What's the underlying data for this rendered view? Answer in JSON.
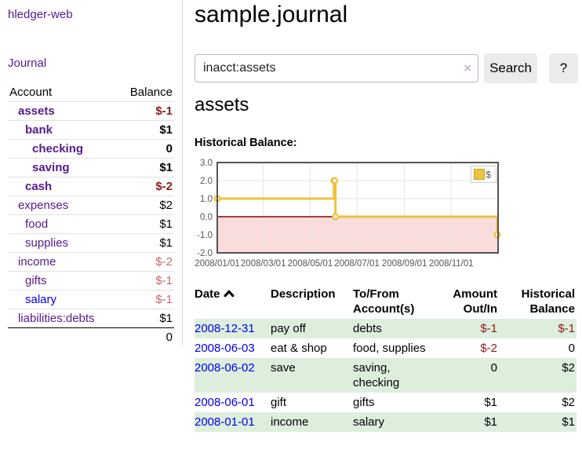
{
  "app": {
    "title": "hledger-web",
    "nav_journal": "Journal"
  },
  "sidebar": {
    "table": {
      "col_account": "Account",
      "col_balance": "Balance",
      "accounts": [
        {
          "name": "assets",
          "indent": 1,
          "bold": true,
          "balance": "$-1",
          "balance_class": "neg-strong",
          "link": "purple"
        },
        {
          "name": "bank",
          "indent": 2,
          "bold": true,
          "balance": "$1",
          "balance_class": "pos-strong",
          "link": "purple"
        },
        {
          "name": "checking",
          "indent": 3,
          "bold": true,
          "balance": "0",
          "balance_class": "pos-strong",
          "link": "purple"
        },
        {
          "name": "saving",
          "indent": 3,
          "bold": true,
          "balance": "$1",
          "balance_class": "pos-strong",
          "link": "purple"
        },
        {
          "name": "cash",
          "indent": 2,
          "bold": true,
          "balance": "$-2",
          "balance_class": "neg-strong",
          "link": "purple"
        },
        {
          "name": "expenses",
          "indent": 1,
          "bold": false,
          "balance": "$2",
          "balance_class": "pos",
          "link": "purple"
        },
        {
          "name": "food",
          "indent": 2,
          "bold": false,
          "balance": "$1",
          "balance_class": "pos",
          "link": "purple"
        },
        {
          "name": "supplies",
          "indent": 2,
          "bold": false,
          "balance": "$1",
          "balance_class": "pos",
          "link": "purple"
        },
        {
          "name": "income",
          "indent": 1,
          "bold": false,
          "balance": "$-2",
          "balance_class": "neg-soft",
          "link": "purple"
        },
        {
          "name": "gifts",
          "indent": 2,
          "bold": false,
          "balance": "$-1",
          "balance_class": "neg-soft",
          "link": "purple"
        },
        {
          "name": "salary",
          "indent": 2,
          "bold": false,
          "balance": "$-1",
          "balance_class": "neg-soft",
          "link": "blue"
        },
        {
          "name": "liabilities:debts",
          "indent": 1,
          "bold": false,
          "balance": "$1",
          "balance_class": "pos",
          "link": "purple"
        }
      ],
      "total": "0"
    }
  },
  "header": {
    "title": "sample.journal"
  },
  "search": {
    "query": "inacct:assets",
    "clear_icon": "×",
    "button_label": "Search",
    "help_label": "?"
  },
  "account_page": {
    "title": "assets",
    "chart_label": "Historical Balance:"
  },
  "chart_data": {
    "type": "line",
    "style": "step",
    "title": "Historical Balance",
    "legend": "$",
    "legend_position": "top-right",
    "grid": true,
    "ylim": [
      -2,
      3
    ],
    "xlim_days": 366,
    "x_start": "2008-01-01",
    "y_ticks": [
      "3.0",
      "2.0",
      "1.0",
      "0.0",
      "-1.0",
      "-2.0"
    ],
    "x_ticks": [
      "2008/01/01",
      "2008/03/01",
      "2008/05/01",
      "2008/07/01",
      "2008/09/01",
      "2008/11/01"
    ],
    "series": [
      {
        "name": "$",
        "color": "#EDC240",
        "points": [
          [
            "2008-01-01",
            1
          ],
          [
            "2008-06-01",
            2
          ],
          [
            "2008-06-02",
            2
          ],
          [
            "2008-06-03",
            0
          ],
          [
            "2008-12-31",
            -1
          ]
        ]
      }
    ],
    "negative_region_color": "#fbdcdc",
    "zero_line_color": "#8b0000",
    "frame_color": "#545454",
    "gridline_color": "#e3e3e3"
  },
  "register": {
    "headers": [
      "Date",
      "Description",
      "To/From\nAccount(s)",
      "Amount\nOut/In",
      "Historical\nBalance"
    ],
    "sort_icon": "chevron-up",
    "rows": [
      {
        "date": "2008-12-31",
        "description": "pay off",
        "accounts": "debts",
        "amount": "$-1",
        "balance": "$-1"
      },
      {
        "date": "2008-06-03",
        "description": "eat & shop",
        "accounts": "food, supplies",
        "amount": "$-2",
        "balance": "0"
      },
      {
        "date": "2008-06-02",
        "description": "save",
        "accounts": "saving, checking",
        "amount": "0",
        "balance": "$2"
      },
      {
        "date": "2008-06-01",
        "description": "gift",
        "accounts": "gifts",
        "amount": "$1",
        "balance": "$2"
      },
      {
        "date": "2008-01-01",
        "description": "income",
        "accounts": "salary",
        "amount": "$1",
        "balance": "$1"
      }
    ]
  },
  "colors": {
    "link_purple": "#551A8B",
    "link_blue": "#0000EE",
    "negative_strong": "#8e1919",
    "negative_soft": "#c06a6e",
    "row_green": "#ddeedd",
    "series_gold": "#EDC240"
  }
}
